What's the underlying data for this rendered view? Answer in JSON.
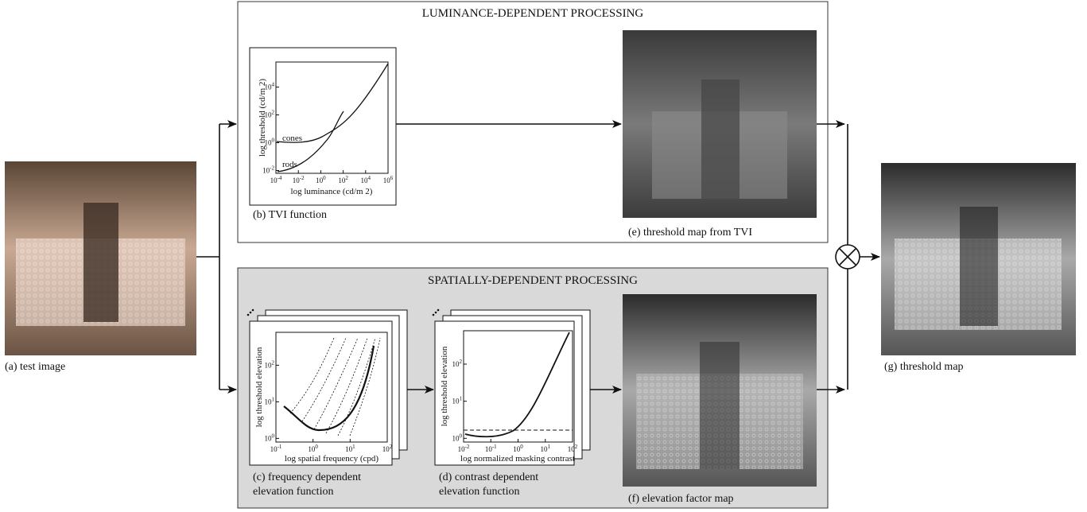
{
  "images": {
    "test_image": {
      "caption": "(a) test image"
    },
    "tvi_map": {
      "caption": "(e) threshold map from TVI"
    },
    "elevation_map": {
      "caption": "(f) elevation factor map"
    },
    "threshold_map": {
      "caption": "(g) threshold map"
    }
  },
  "luminance_box": {
    "title": "LUMINANCE-DEPENDENT PROCESSING"
  },
  "spatial_box": {
    "title": "SPATIALLY-DEPENDENT PROCESSING"
  },
  "plots": {
    "tvi": {
      "caption": [
        "(b) TVI function"
      ],
      "xlabel": "log luminance (cd/m 2)",
      "ylabel": "log threshold (cd/m 2)",
      "curve_labels": [
        "cones",
        "rods"
      ],
      "tick_base": "10",
      "xtick_exponents": [
        "-4",
        "-2",
        "0",
        "2",
        "4",
        "6"
      ],
      "ytick_exponents": [
        "-2",
        "0",
        "2",
        "4"
      ]
    },
    "frequency": {
      "caption": [
        "(c) frequency dependent",
        "elevation function"
      ],
      "xlabel": "log spatial frequency (cpd)",
      "ylabel": "log threshold elevation",
      "tick_base": "10",
      "xtick_exponents": [
        "-1",
        "0",
        "1",
        "2"
      ],
      "ytick_exponents": [
        "0",
        "1",
        "2"
      ]
    },
    "contrast": {
      "caption": [
        "(d) contrast dependent",
        "elevation function"
      ],
      "xlabel": "log normalized masking contrast",
      "ylabel": "log threshold elevation",
      "tick_base": "10",
      "xtick_exponents": [
        "-2",
        "-1",
        "0",
        "1",
        "2"
      ],
      "ytick_exponents": [
        "0",
        "1",
        "2"
      ]
    }
  }
}
